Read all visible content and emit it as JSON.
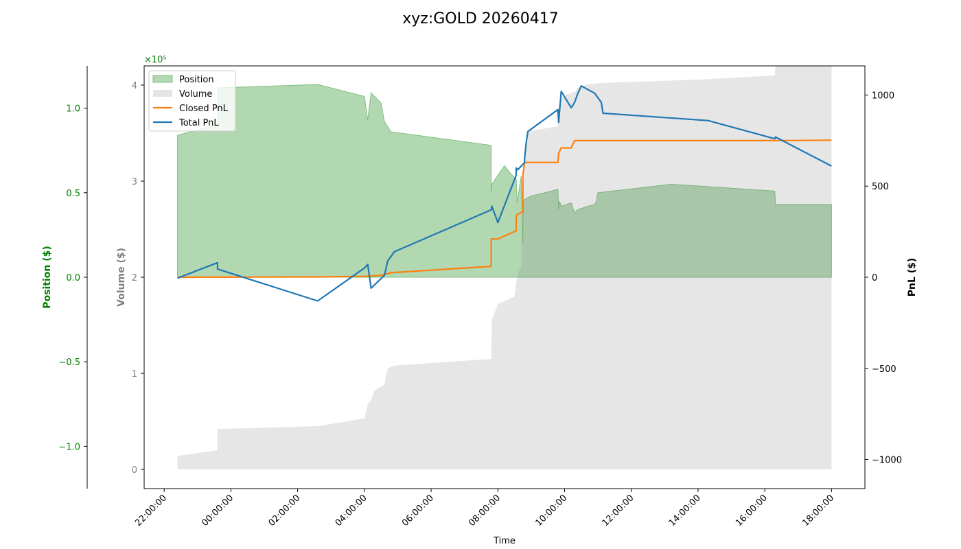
{
  "chart_data": {
    "type": "line",
    "title": "xyz:GOLD 20260417",
    "xlabel": "Time",
    "x_ticks": [
      "22:00:00",
      "00:00:00",
      "02:00:00",
      "04:00:00",
      "06:00:00",
      "08:00:00",
      "10:00:00",
      "12:00:00",
      "14:00:00",
      "16:00:00",
      "18:00:00"
    ],
    "x_range_hours": [
      21.4,
      43.0
    ],
    "axes": {
      "position": {
        "label": "Position ($)",
        "color": "#008000",
        "scale_label": "×10⁵",
        "ylim": [
          -1.25,
          1.25
        ],
        "ticks": [
          -1.0,
          -0.5,
          0.0,
          0.5,
          1.0
        ],
        "tick_labels": [
          "−1.0",
          "−0.5",
          "0.0",
          "0.5",
          "1.0"
        ]
      },
      "volume": {
        "label": "Volume ($)",
        "color": "#808080",
        "ylim": [
          -0.2,
          4.2
        ],
        "ticks": [
          0,
          1,
          2,
          3,
          4
        ],
        "tick_labels": [
          "0",
          "1",
          "2",
          "3",
          "4"
        ]
      },
      "pnl": {
        "label": "PnL ($)",
        "color": "#000000",
        "ylim": [
          -1160,
          1160
        ],
        "ticks": [
          -1000,
          -500,
          0,
          500,
          1000
        ],
        "tick_labels": [
          "−1000",
          "−500",
          "0",
          "500",
          "1000"
        ]
      }
    },
    "legend": {
      "placement": "upper-left",
      "entries": [
        {
          "label": "Position",
          "type": "area",
          "color": "#b2d8b2"
        },
        {
          "label": "Volume",
          "type": "area",
          "color": "#e4e4e4"
        },
        {
          "label": "Closed PnL",
          "type": "line",
          "color": "#ff7f0e"
        },
        {
          "label": "Total PnL",
          "type": "line",
          "color": "#1f77b4"
        }
      ]
    },
    "series": [
      {
        "name": "Position",
        "axis": "position",
        "type": "area",
        "color": "#2ca02c",
        "x": [
          22.4,
          23.6,
          23.6,
          26.6,
          28.0,
          28.1,
          28.2,
          28.5,
          28.6,
          28.8,
          31.8,
          31.8,
          31.82,
          32.2,
          32.35,
          32.55,
          32.58,
          32.7,
          32.75,
          32.76,
          32.8,
          33.0,
          33.8,
          33.82,
          33.85,
          33.9,
          34.2,
          34.3,
          34.4,
          34.7,
          34.9,
          34.95,
          35.0,
          37.2,
          40.3,
          40.32,
          42.0
        ],
        "y": [
          0.84,
          0.9,
          1.12,
          1.14,
          1.07,
          0.93,
          1.09,
          1.03,
          0.92,
          0.86,
          0.78,
          0.5,
          0.55,
          0.66,
          0.62,
          0.58,
          0.44,
          0.6,
          0.2,
          0.45,
          0.46,
          0.48,
          0.52,
          0.4,
          0.45,
          0.42,
          0.44,
          0.38,
          0.4,
          0.42,
          0.43,
          0.45,
          0.5,
          0.55,
          0.51,
          0.43,
          0.43
        ]
      },
      {
        "name": "Volume",
        "axis": "volume",
        "type": "area",
        "color": "#e4e4e4",
        "x": [
          22.4,
          23.6,
          23.6,
          26.6,
          28.0,
          28.05,
          28.1,
          28.2,
          28.3,
          28.6,
          28.65,
          28.7,
          28.9,
          31.8,
          31.82,
          32.0,
          32.5,
          32.55,
          32.6,
          32.7,
          32.75,
          32.9,
          33.8,
          33.82,
          33.9,
          34.0,
          34.05,
          34.3,
          34.4,
          34.6,
          35.0,
          38.2,
          40.3,
          40.32,
          42.0
        ],
        "y": [
          0.14,
          0.2,
          0.42,
          0.45,
          0.53,
          0.6,
          0.68,
          0.72,
          0.82,
          0.88,
          0.98,
          1.05,
          1.08,
          1.15,
          1.55,
          1.72,
          1.8,
          1.95,
          2.05,
          2.1,
          3.1,
          3.52,
          3.57,
          3.78,
          3.86,
          3.88,
          3.9,
          3.93,
          3.97,
          4.0,
          4.02,
          4.06,
          4.1,
          4.2,
          4.2
        ]
      },
      {
        "name": "Closed PnL",
        "axis": "pnl",
        "type": "line",
        "color": "#ff7f0e",
        "x": [
          22.4,
          26.6,
          28.0,
          28.5,
          28.8,
          31.8,
          31.8,
          32.0,
          32.55,
          32.55,
          32.75,
          32.75,
          32.8,
          33.8,
          33.82,
          33.9,
          34.2,
          34.3,
          40.3,
          42.0
        ],
        "y": [
          0,
          2,
          5,
          10,
          25,
          60,
          210,
          210,
          255,
          340,
          360,
          560,
          630,
          630,
          680,
          710,
          710,
          750,
          750,
          752
        ]
      },
      {
        "name": "Total PnL",
        "axis": "pnl",
        "type": "line",
        "color": "#1f77b4",
        "x": [
          22.4,
          23.6,
          23.6,
          26.6,
          28.0,
          28.1,
          28.2,
          28.6,
          28.7,
          28.9,
          31.8,
          31.82,
          32.0,
          32.55,
          32.55,
          32.6,
          32.8,
          32.8,
          32.85,
          32.9,
          33.8,
          33.82,
          33.9,
          34.2,
          34.3,
          34.4,
          34.5,
          34.9,
          35.1,
          35.15,
          38.3,
          40.3,
          40.32,
          42.0
        ],
        "y": [
          -5,
          80,
          45,
          -130,
          50,
          70,
          -60,
          10,
          90,
          140,
          370,
          390,
          300,
          560,
          600,
          590,
          630,
          650,
          740,
          800,
          920,
          850,
          1020,
          930,
          960,
          1010,
          1050,
          1010,
          960,
          900,
          860,
          760,
          770,
          610
        ]
      }
    ]
  }
}
